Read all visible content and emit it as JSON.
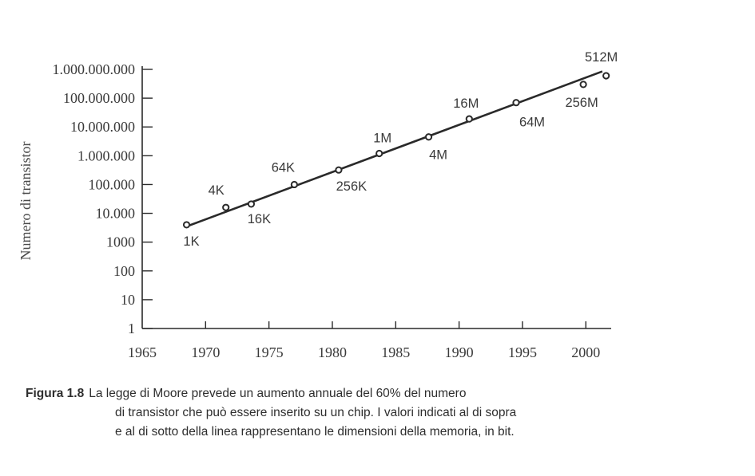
{
  "chart_data": {
    "type": "scatter",
    "ylabel": "Numero di transistor",
    "xlabel": "",
    "yscale": "log",
    "xlim": [
      1965,
      2002
    ],
    "ylim": [
      1,
      1000000000
    ],
    "x_ticks": [
      "1965",
      "1970",
      "1975",
      "1980",
      "1985",
      "1990",
      "1995",
      "2000"
    ],
    "y_ticks": [
      {
        "value": 1,
        "label": "1"
      },
      {
        "value": 10,
        "label": "10"
      },
      {
        "value": 100,
        "label": "100"
      },
      {
        "value": 1000,
        "label": "1000"
      },
      {
        "value": 10000,
        "label": "10.000"
      },
      {
        "value": 100000,
        "label": "100.000"
      },
      {
        "value": 1000000,
        "label": "1.000.000"
      },
      {
        "value": 10000000,
        "label": "10.000.000"
      },
      {
        "value": 100000000,
        "label": "100.000.000"
      },
      {
        "value": 1000000000,
        "label": "1.000.000.000"
      }
    ],
    "points": [
      {
        "x": 1968.5,
        "y": 4000,
        "label": "1K",
        "label_pos": "below"
      },
      {
        "x": 1971.6,
        "y": 16000,
        "label": "4K",
        "label_pos": "above"
      },
      {
        "x": 1973.6,
        "y": 21000,
        "label": "16K",
        "label_pos": "below"
      },
      {
        "x": 1977.0,
        "y": 100000,
        "label": "64K",
        "label_pos": "above"
      },
      {
        "x": 1980.5,
        "y": 320000,
        "label": "256K",
        "label_pos": "below"
      },
      {
        "x": 1983.7,
        "y": 1200000,
        "label": "1M",
        "label_pos": "above"
      },
      {
        "x": 1987.6,
        "y": 4500000,
        "label": "4M",
        "label_pos": "below"
      },
      {
        "x": 1990.8,
        "y": 19000000,
        "label": "16M",
        "label_pos": "above"
      },
      {
        "x": 1994.5,
        "y": 70000000,
        "label": "64M",
        "label_pos": "below"
      },
      {
        "x": 1999.8,
        "y": 300000000,
        "label": "256M",
        "label_pos": "below"
      },
      {
        "x": 2001.6,
        "y": 600000000,
        "label": "512M",
        "label_pos": "above"
      }
    ],
    "trend_line": {
      "x": [
        1968.5,
        2001.3
      ],
      "y": [
        3500,
        850000000
      ]
    },
    "grid": false,
    "legend": "none"
  },
  "caption": {
    "label": "Figura 1.8",
    "lines": [
      "La legge di Moore prevede un aumento annuale del 60% del numero",
      "di transistor che può essere inserito su un chip. I valori indicati al di sopra",
      "e al di sotto della linea rappresentano le dimensioni della memoria, in bit."
    ]
  }
}
